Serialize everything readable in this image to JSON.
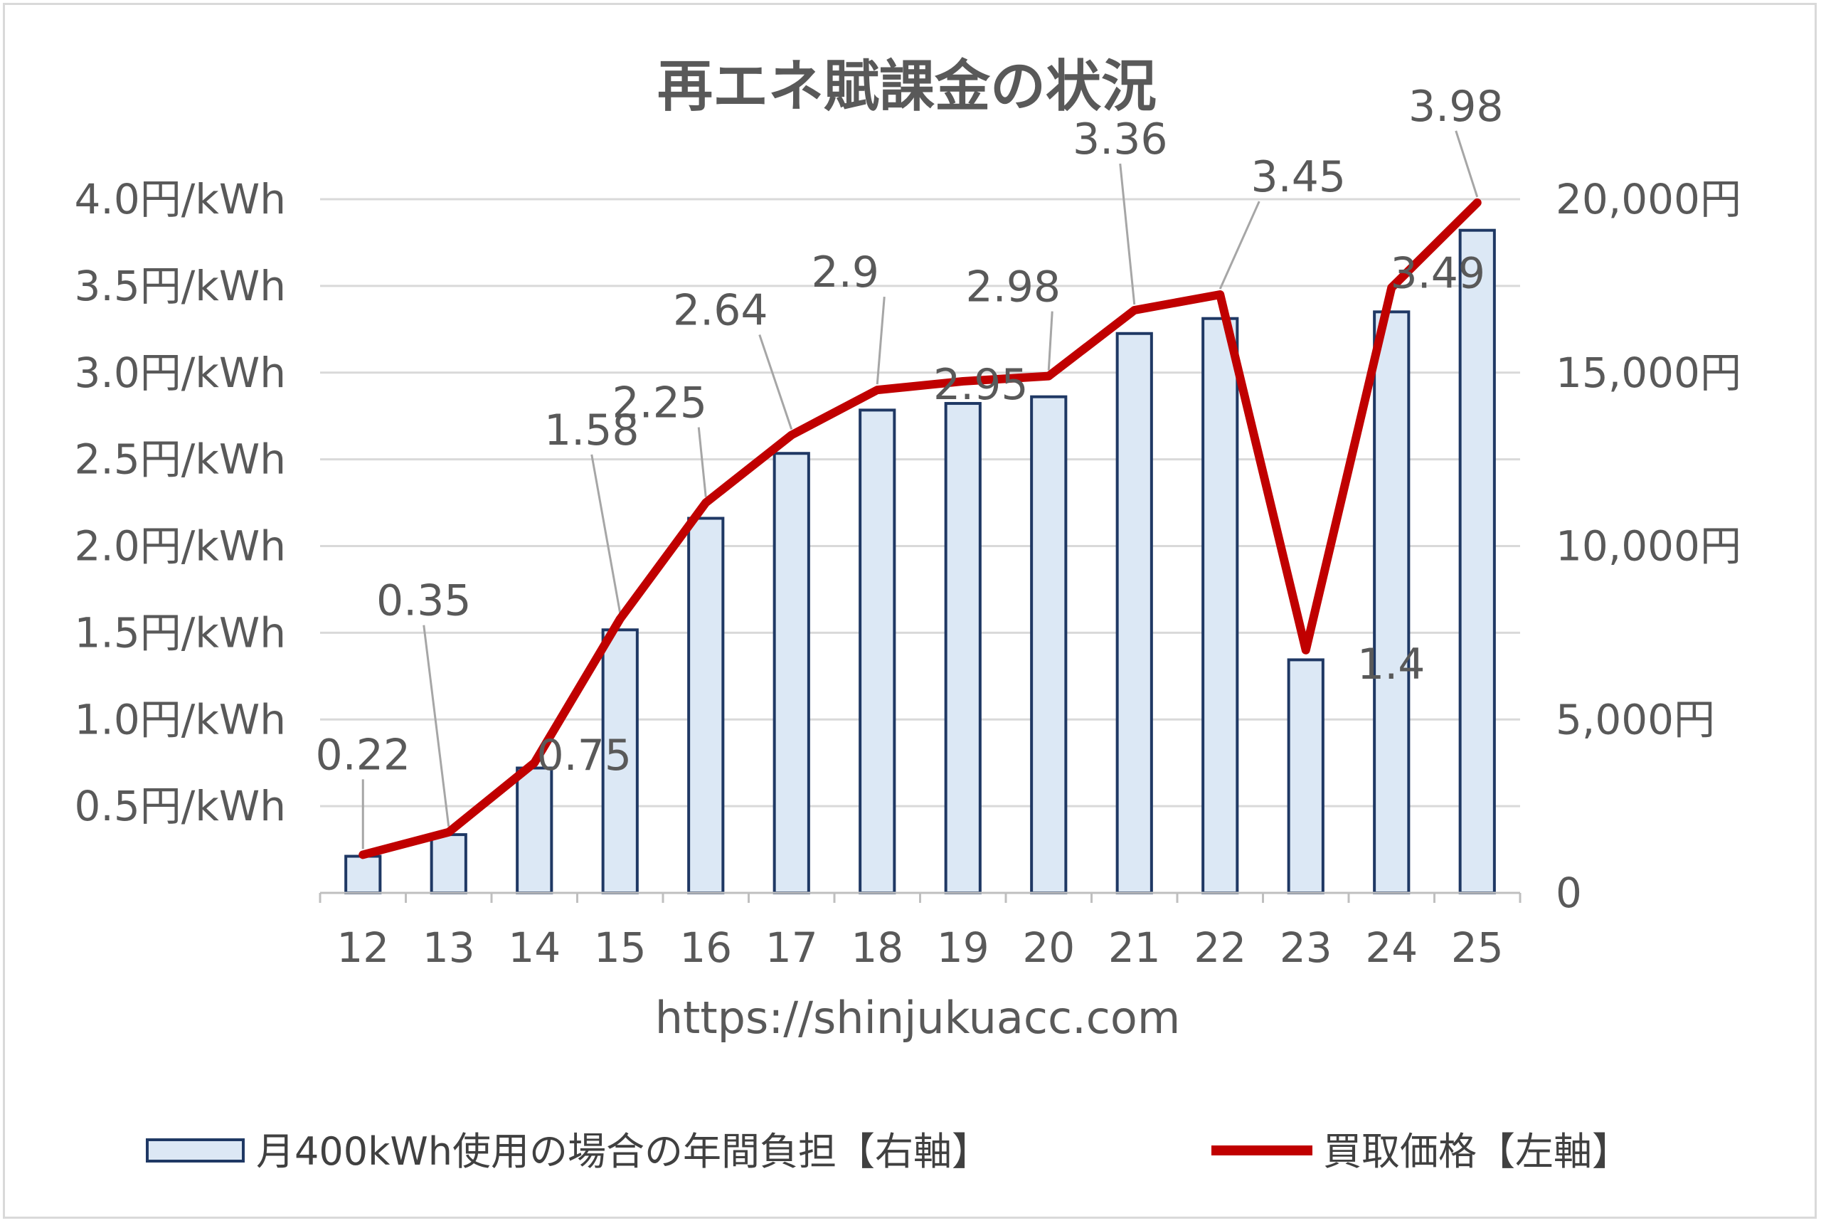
{
  "chart_data": {
    "type": "bar+line",
    "title": "再エネ賦課金の状況",
    "xlabel": "https://shinjukuacc.com",
    "categories": [
      "12",
      "13",
      "14",
      "15",
      "16",
      "17",
      "18",
      "19",
      "20",
      "21",
      "22",
      "23",
      "24",
      "25"
    ],
    "y_left": {
      "ylim": [
        0,
        4.0
      ],
      "ticks": [
        0.5,
        1.0,
        1.5,
        2.0,
        2.5,
        3.0,
        3.5,
        4.0
      ],
      "tick_labels": [
        "0.5円/kWh",
        "1.0円/kWh",
        "1.5円/kWh",
        "2.0円/kWh",
        "2.5円/kWh",
        "3.0円/kWh",
        "3.5円/kWh",
        "4.0円/kWh"
      ]
    },
    "y_right": {
      "ylim": [
        0,
        20000
      ],
      "ticks": [
        0,
        5000,
        10000,
        15000,
        20000
      ],
      "tick_labels": [
        "0",
        "5,000円",
        "10,000円",
        "15,000円",
        "20,000円"
      ]
    },
    "grid": true,
    "legend_position": "bottom",
    "series": [
      {
        "name": "月400kWh使用の場合の年間負担【右軸】",
        "type": "bar",
        "axis": "right",
        "color": "#dce8f5",
        "edge_color": "#1f3864",
        "values": [
          1056,
          1680,
          3600,
          7584,
          10800,
          12672,
          13920,
          14112,
          14304,
          16128,
          16560,
          6720,
          16752,
          19104
        ]
      },
      {
        "name": "買取価格【左軸】",
        "type": "line",
        "axis": "left",
        "color": "#c00000",
        "values": [
          0.22,
          0.35,
          0.75,
          1.58,
          2.25,
          2.64,
          2.9,
          2.95,
          2.98,
          3.36,
          3.45,
          1.4,
          3.49,
          3.98
        ],
        "data_labels": [
          "0.22",
          "0.35",
          "0.75",
          "1.58",
          "2.25",
          "2.64",
          "2.9",
          "2.95",
          "2.98",
          "3.36",
          "3.45",
          "1.4",
          "3.49",
          "3.98"
        ]
      }
    ]
  }
}
